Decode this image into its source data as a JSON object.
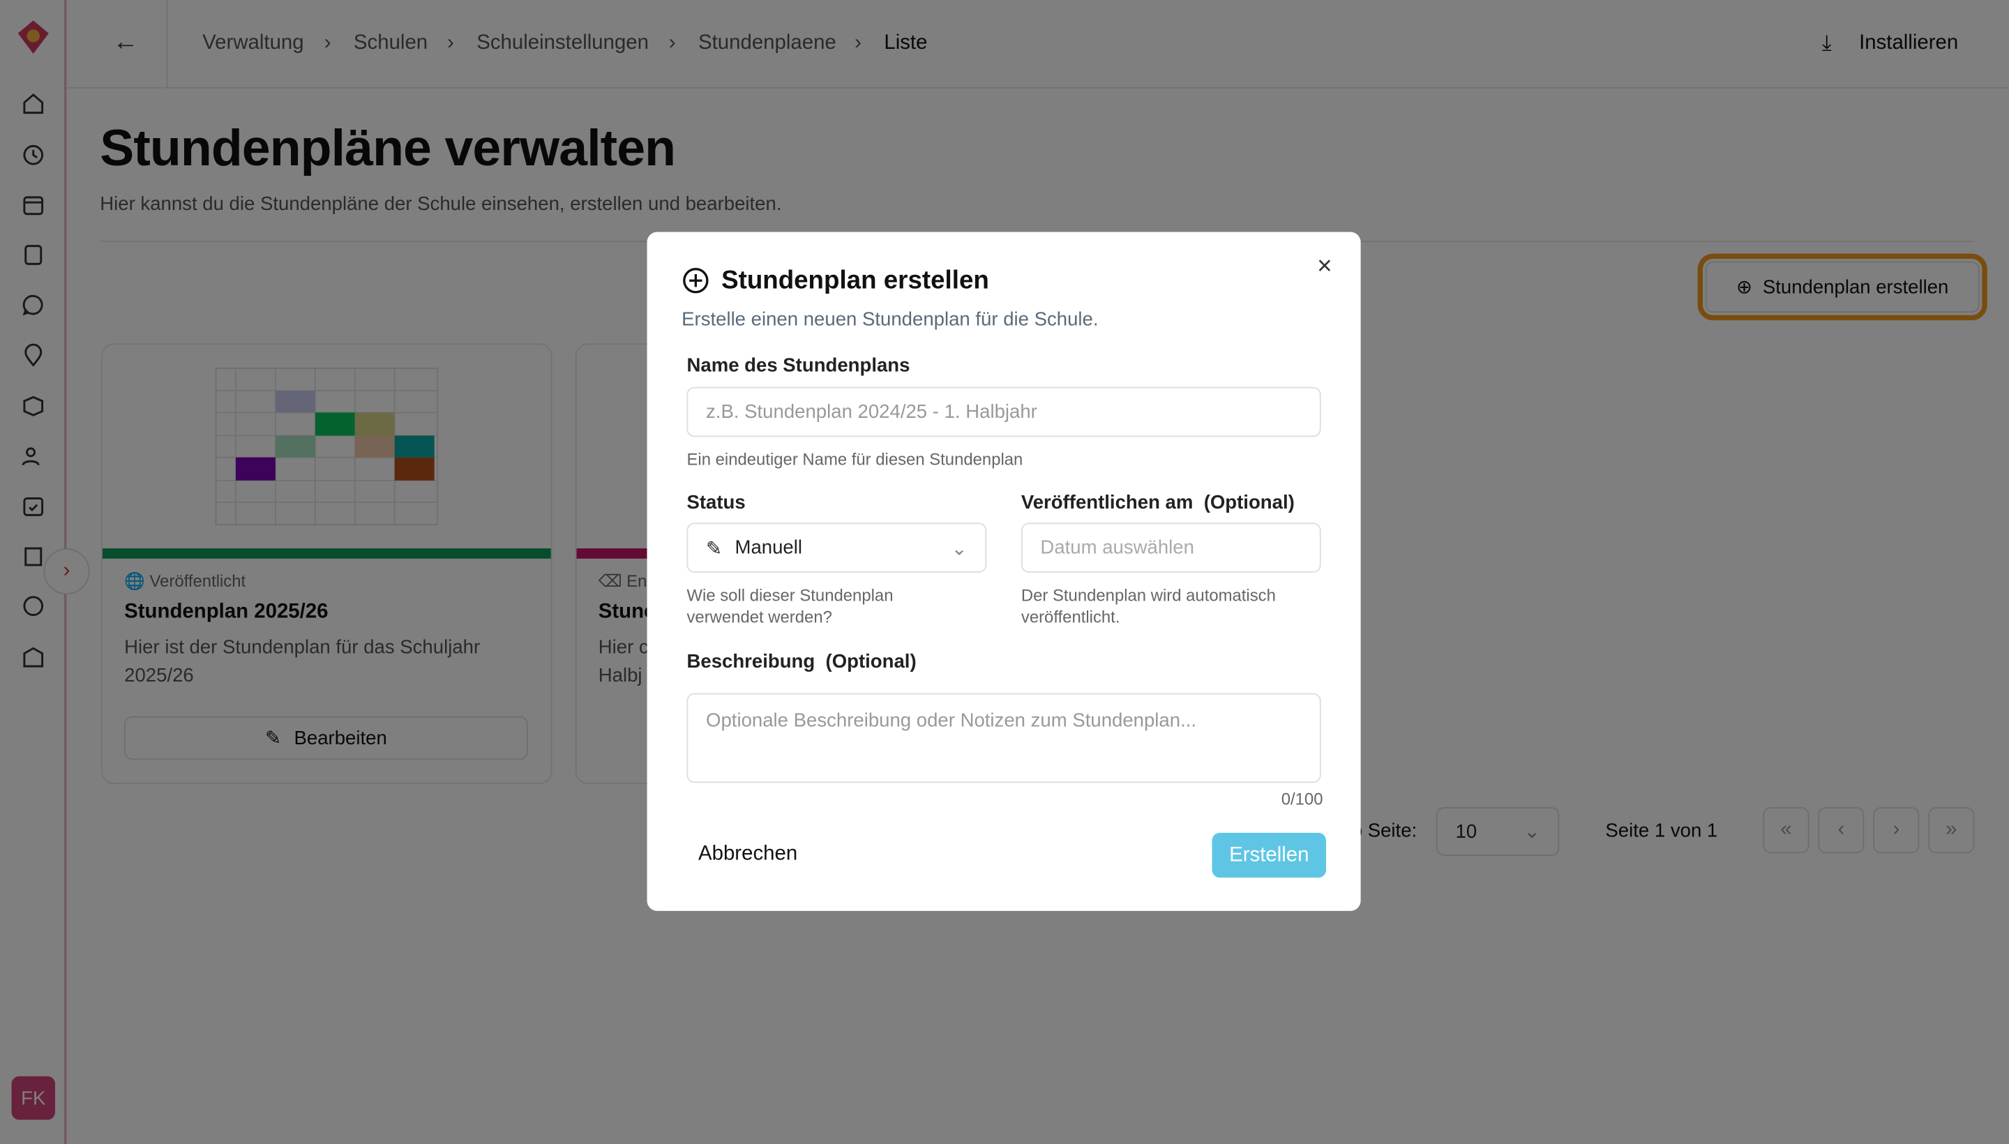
{
  "breadcrumb": [
    "Verwaltung",
    "Schulen",
    "Schuleinstellungen",
    "Stundenplaene",
    "Liste"
  ],
  "install_button": "Installieren",
  "header": {
    "title": "Stundenpläne verwalten",
    "subtitle": "Hier kannst du die Stundenpläne der Schule einsehen, erstellen und bearbeiten."
  },
  "create_button": "Stundenplan erstellen",
  "cards": [
    {
      "status": "Veröffentlicht",
      "title": "Stundenplan 2025/26",
      "description": "Hier ist der Stundenplan für das Schuljahr 2025/26",
      "edit_button": "Bearbeiten"
    },
    {
      "status": "Ent",
      "title": "Stunc",
      "description": "Hier c Halbj"
    }
  ],
  "pagination": {
    "per_page_label": "o Seite:",
    "page_size": "10",
    "page_info": "Seite 1 von 1"
  },
  "avatar": "FK",
  "dialog": {
    "title": "Stundenplan erstellen",
    "description": "Erstelle einen neuen Stundenplan für die Schule.",
    "name_label": "Name des Stundenplans",
    "name_placeholder": "z.B. Stundenplan 2024/25 - 1. Halbjahr",
    "name_hint": "Ein eindeutiger Name für diesen Stundenplan",
    "status_label": "Status",
    "status_value": "Manuell",
    "status_hint": "Wie soll dieser Stundenplan verwendet werden?",
    "publish_label": "Veröffentlichen am",
    "publish_optional": "(Optional)",
    "publish_placeholder": "Datum auswählen",
    "publish_hint": "Der Stundenplan wird automatisch veröffentlicht.",
    "description_label": "Beschreibung",
    "description_optional": "(Optional)",
    "description_placeholder": "Optionale Beschreibung oder Notizen zum Stundenplan...",
    "char_count": "0/100",
    "cancel": "Abbrechen",
    "submit": "Erstellen"
  }
}
